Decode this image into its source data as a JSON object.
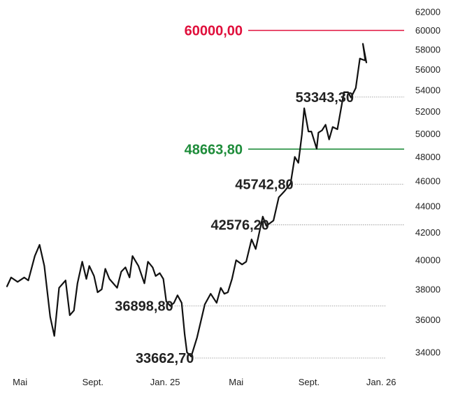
{
  "chart_data": {
    "type": "line",
    "title": "",
    "xlabel": "",
    "ylabel": "",
    "ylim": [
      33500,
      62300
    ],
    "y_scale": "log",
    "y_ticks": [
      34000,
      36000,
      38000,
      40000,
      42000,
      44000,
      46000,
      48000,
      50000,
      52000,
      54000,
      56000,
      58000,
      60000,
      62000
    ],
    "y_tick_labels": [
      "34000",
      "36000",
      "38000",
      "40000",
      "42000",
      "44000",
      "46000",
      "48000",
      "50000",
      "52000",
      "54000",
      "56000",
      "58000",
      "60000",
      "62000"
    ],
    "x_ticks": [
      {
        "label": "Mai",
        "date": "2024-05-01"
      },
      {
        "label": "Sept.",
        "date": "2024-09-01"
      },
      {
        "label": "Jan. 25",
        "date": "2025-01-01"
      },
      {
        "label": "Mai",
        "date": "2025-05-01"
      },
      {
        "label": "Sept.",
        "date": "2025-09-01"
      },
      {
        "label": "Jan. 26",
        "date": "2026-01-01"
      }
    ],
    "xlim": [
      "2024-04-09",
      "2026-01-22"
    ],
    "grid": false,
    "series": [
      {
        "color": "#111111",
        "points": [
          [
            "2024-04-09",
            38200
          ],
          [
            "2024-04-16",
            38800
          ],
          [
            "2024-04-27",
            38500
          ],
          [
            "2024-05-08",
            38800
          ],
          [
            "2024-05-15",
            38600
          ],
          [
            "2024-05-26",
            40300
          ],
          [
            "2024-06-03",
            41100
          ],
          [
            "2024-06-11",
            39600
          ],
          [
            "2024-06-21",
            36200
          ],
          [
            "2024-06-28",
            35000
          ],
          [
            "2024-07-06",
            38100
          ],
          [
            "2024-07-17",
            38600
          ],
          [
            "2024-07-24",
            36300
          ],
          [
            "2024-07-31",
            36600
          ],
          [
            "2024-08-06",
            38400
          ],
          [
            "2024-08-14",
            39900
          ],
          [
            "2024-08-21",
            38700
          ],
          [
            "2024-08-26",
            39600
          ],
          [
            "2024-09-03",
            38900
          ],
          [
            "2024-09-09",
            37800
          ],
          [
            "2024-09-16",
            38000
          ],
          [
            "2024-09-22",
            39400
          ],
          [
            "2024-09-29",
            38700
          ],
          [
            "2024-10-12",
            38100
          ],
          [
            "2024-10-19",
            39200
          ],
          [
            "2024-10-26",
            39500
          ],
          [
            "2024-11-02",
            38800
          ],
          [
            "2024-11-07",
            40300
          ],
          [
            "2024-11-17",
            39600
          ],
          [
            "2024-11-27",
            38400
          ],
          [
            "2024-12-03",
            39900
          ],
          [
            "2024-12-11",
            39500
          ],
          [
            "2024-12-16",
            38900
          ],
          [
            "2024-12-23",
            39100
          ],
          [
            "2024-12-29",
            38700
          ],
          [
            "2025-01-03",
            37200
          ],
          [
            "2025-01-10",
            36900
          ],
          [
            "2025-01-16",
            37100
          ],
          [
            "2025-01-22",
            37600
          ],
          [
            "2025-01-29",
            37100
          ],
          [
            "2025-02-03",
            35100
          ],
          [
            "2025-02-07",
            34000
          ],
          [
            "2025-02-14",
            33750
          ],
          [
            "2025-02-24",
            34900
          ],
          [
            "2025-03-09",
            37000
          ],
          [
            "2025-03-19",
            37700
          ],
          [
            "2025-03-29",
            37100
          ],
          [
            "2025-04-05",
            38100
          ],
          [
            "2025-04-11",
            37700
          ],
          [
            "2025-04-17",
            37800
          ],
          [
            "2025-04-24",
            38700
          ],
          [
            "2025-05-01",
            40000
          ],
          [
            "2025-05-11",
            39700
          ],
          [
            "2025-05-18",
            39900
          ],
          [
            "2025-05-27",
            41500
          ],
          [
            "2025-06-03",
            40800
          ],
          [
            "2025-06-15",
            43200
          ],
          [
            "2025-06-21",
            42500
          ],
          [
            "2025-07-03",
            42900
          ],
          [
            "2025-07-12",
            44700
          ],
          [
            "2025-07-22",
            45200
          ],
          [
            "2025-08-01",
            45800
          ],
          [
            "2025-08-08",
            48000
          ],
          [
            "2025-08-14",
            47500
          ],
          [
            "2025-08-20",
            49900
          ],
          [
            "2025-08-24",
            52300
          ],
          [
            "2025-08-31",
            50200
          ],
          [
            "2025-09-05",
            50200
          ],
          [
            "2025-09-14",
            48700
          ],
          [
            "2025-09-17",
            50100
          ],
          [
            "2025-09-23",
            50300
          ],
          [
            "2025-09-29",
            50800
          ],
          [
            "2025-10-05",
            49500
          ],
          [
            "2025-10-11",
            50600
          ],
          [
            "2025-10-19",
            50400
          ],
          [
            "2025-10-30",
            53800
          ],
          [
            "2025-11-06",
            53800
          ],
          [
            "2025-11-11",
            53300
          ],
          [
            "2025-11-19",
            54200
          ],
          [
            "2025-11-26",
            57100
          ],
          [
            "2025-11-30",
            57000
          ],
          [
            "2025-12-05",
            56900
          ],
          [
            "2025-12-01",
            58600
          ],
          [
            "2025-12-07",
            56700
          ]
        ]
      }
    ],
    "annotations": [
      {
        "text": "60000,00",
        "value": 60000,
        "color": "#e0103c",
        "style": "solid-line"
      },
      {
        "text": "53343,30",
        "value": 53343.3,
        "color": "#222222",
        "style": "dotted-line"
      },
      {
        "text": "48663,80",
        "value": 48663.8,
        "color": "#1e8c3a",
        "style": "solid-line"
      },
      {
        "text": "45742,80",
        "value": 45742.8,
        "color": "#222222",
        "style": "dotted-line"
      },
      {
        "text": "42576,20",
        "value": 42576.2,
        "color": "#222222",
        "style": "dotted-line"
      },
      {
        "text": "36898,80",
        "value": 36898.8,
        "color": "#222222",
        "style": "dotted-line"
      },
      {
        "text": "33662,70",
        "value": 33662.7,
        "color": "#222222",
        "style": "dotted-line"
      }
    ]
  }
}
